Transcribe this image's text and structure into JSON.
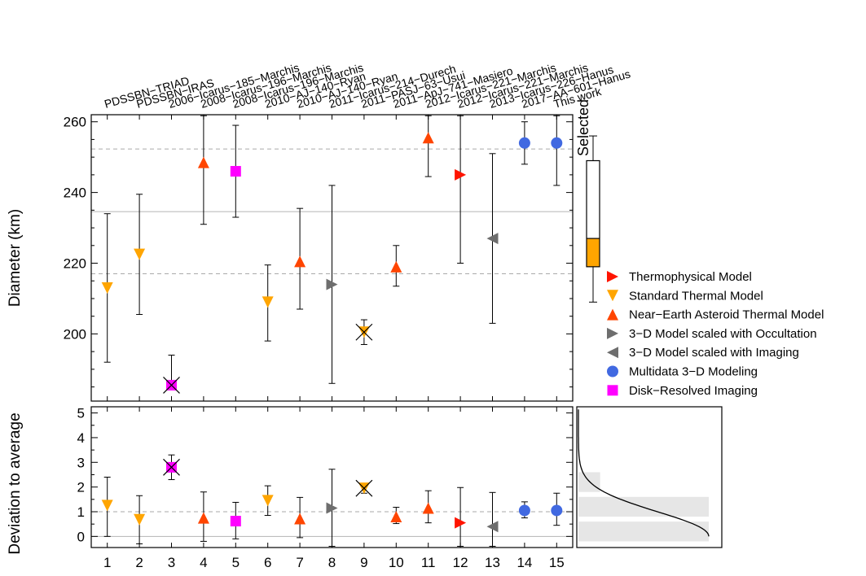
{
  "chart_data": [
    {
      "type": "scatter",
      "panel": "diameter",
      "ylabel": "Diameter (km)",
      "xlim": [
        0.5,
        15.5
      ],
      "ylim": [
        181,
        262
      ],
      "yticks": [
        200,
        220,
        240,
        260
      ],
      "reference_lines": {
        "mean": 234.6,
        "minus_sigma": 217,
        "plus_sigma": 252.3
      },
      "top_labels": [
        "PDSSBN−TRIAD",
        "PDSSBN−IRAS",
        "2006−Icarus−185−Marchis",
        "2008−Icarus−196−Marchis",
        "2008−Icarus−196−Marchis",
        "2010−AJ−140−Ryan",
        "2010−AJ−140−Ryan",
        "2011−Icarus−214−Durech",
        "2011−PASJ−63−Usui",
        "2011−ApJ−741−Masiero",
        "2012−Icarus−221−Marchis",
        "2012−Icarus−221−Marchis",
        "2013−Icarus−226−Hanus",
        "2017−AA−601−Hanus",
        "This work"
      ],
      "points": [
        {
          "x": 1,
          "y": 213,
          "err_low": 192,
          "err_high": 234,
          "method": "stm",
          "rejected": false
        },
        {
          "x": 2,
          "y": 222.5,
          "err_low": 205.5,
          "err_high": 239.5,
          "method": "stm",
          "rejected": false
        },
        {
          "x": 3,
          "y": 185.5,
          "err_low": 185.5,
          "err_high": 194,
          "method": "disk",
          "rejected": true
        },
        {
          "x": 4,
          "y": 248.5,
          "err_low": 231,
          "err_high": 262,
          "method": "neatm",
          "rejected": false
        },
        {
          "x": 5,
          "y": 246,
          "err_low": 233,
          "err_high": 259,
          "method": "disk",
          "rejected": false
        },
        {
          "x": 6,
          "y": 209,
          "err_low": 198,
          "err_high": 219.5,
          "method": "stm",
          "rejected": false
        },
        {
          "x": 7,
          "y": 220.5,
          "err_low": 207,
          "err_high": 235.5,
          "method": "neatm",
          "rejected": false
        },
        {
          "x": 8,
          "y": 214,
          "err_low": 186,
          "err_high": 242,
          "method": "occultation",
          "rejected": false
        },
        {
          "x": 9,
          "y": 200.5,
          "err_low": 197,
          "err_high": 204,
          "method": "stm",
          "rejected": true
        },
        {
          "x": 10,
          "y": 219,
          "err_low": 213.5,
          "err_high": 225,
          "method": "neatm",
          "rejected": false
        },
        {
          "x": 11,
          "y": 255.5,
          "err_low": 244.5,
          "err_high": 262,
          "method": "neatm",
          "rejected": false
        },
        {
          "x": 12,
          "y": 245,
          "err_low": 220,
          "err_high": 262,
          "method": "tpm",
          "rejected": false
        },
        {
          "x": 13,
          "y": 227,
          "err_low": 203,
          "err_high": 251,
          "method": "imaging",
          "rejected": false
        },
        {
          "x": 14,
          "y": 254,
          "err_low": 248,
          "err_high": 260,
          "method": "multidata",
          "rejected": false
        },
        {
          "x": 15,
          "y": 254,
          "err_low": 242,
          "err_high": 262,
          "method": "multidata",
          "rejected": false
        }
      ],
      "selected_boxplot": {
        "label": "Selected",
        "min": 209,
        "q1": 219,
        "median": 227,
        "q3": 249,
        "max": 256
      },
      "legend": [
        {
          "label": "Thermophysical Model",
          "method": "tpm"
        },
        {
          "label": "Standard Thermal Model",
          "method": "stm"
        },
        {
          "label": "Near−Earth Asteroid Thermal Model",
          "method": "neatm"
        },
        {
          "label": "3−D Model scaled with Occultation",
          "method": "occultation"
        },
        {
          "label": "3−D Model scaled with Imaging",
          "method": "imaging"
        },
        {
          "label": "Multidata 3−D Modeling",
          "method": "multidata"
        },
        {
          "label": "Disk−Resolved Imaging",
          "method": "disk"
        }
      ],
      "legend_position": "right"
    },
    {
      "type": "scatter",
      "panel": "deviation",
      "ylabel": "Deviation to average",
      "xlabel_ticks": [
        "1",
        "2",
        "3",
        "4",
        "5",
        "6",
        "7",
        "8",
        "9",
        "10",
        "11",
        "12",
        "13",
        "14",
        "15"
      ],
      "xlim": [
        0.5,
        15.5
      ],
      "ylim": [
        -0.45,
        5.25
      ],
      "yticks": [
        0,
        1,
        2,
        3,
        4,
        5
      ],
      "reference_lines": {
        "zero": 0,
        "one_sigma": 1
      },
      "points": [
        {
          "x": 1,
          "y": 1.25,
          "err_low": 0.0,
          "err_high": 2.4
        },
        {
          "x": 2,
          "y": 0.68,
          "err_low": -0.3,
          "err_high": 1.65
        },
        {
          "x": 3,
          "y": 2.8,
          "err_low": 2.3,
          "err_high": 3.3
        },
        {
          "x": 4,
          "y": 0.75,
          "err_low": -0.2,
          "err_high": 1.8
        },
        {
          "x": 5,
          "y": 0.62,
          "err_low": -0.1,
          "err_high": 1.38
        },
        {
          "x": 6,
          "y": 1.45,
          "err_low": 0.85,
          "err_high": 2.05
        },
        {
          "x": 7,
          "y": 0.72,
          "err_low": -0.05,
          "err_high": 1.58
        },
        {
          "x": 8,
          "y": 1.15,
          "err_low": -0.45,
          "err_high": 2.72
        },
        {
          "x": 9,
          "y": 1.95,
          "err_low": 1.75,
          "err_high": 2.15
        },
        {
          "x": 10,
          "y": 0.8,
          "err_low": 0.52,
          "err_high": 1.18
        },
        {
          "x": 11,
          "y": 1.15,
          "err_low": 0.55,
          "err_high": 1.85
        },
        {
          "x": 12,
          "y": 0.55,
          "err_low": -0.45,
          "err_high": 1.98
        },
        {
          "x": 13,
          "y": 0.4,
          "err_low": -0.45,
          "err_high": 1.78
        },
        {
          "x": 14,
          "y": 1.05,
          "err_low": 0.75,
          "err_high": 1.4
        },
        {
          "x": 15,
          "y": 1.05,
          "err_low": 0.45,
          "err_high": 1.75
        }
      ],
      "histogram": [
        {
          "from": -0.2,
          "to": 0.6,
          "count": 6
        },
        {
          "from": 0.8,
          "to": 1.6,
          "count": 6
        },
        {
          "from": 1.8,
          "to": 2.6,
          "count": 1
        }
      ],
      "distribution_curve": "half-normal"
    }
  ],
  "colors": {
    "tpm": "#ff1400",
    "stm": "#ffa500",
    "neatm": "#ff4500",
    "occultation": "#6e6e6e",
    "imaging": "#6e6e6e",
    "multidata": "#4169e1",
    "disk": "#ff00ff",
    "box_fill": "#ffa500",
    "grid_solid": "#b4b4b4",
    "grid_dashed": "#aaaaaa",
    "hist_fill": "#e6e6e6"
  }
}
